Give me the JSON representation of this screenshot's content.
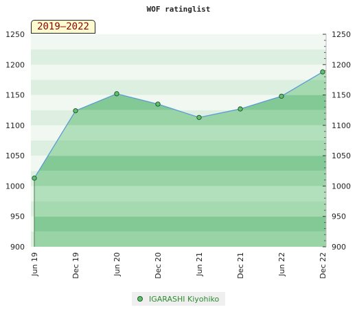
{
  "chart_data": {
    "type": "area",
    "title": "WOF ratinglist",
    "period_badge": "2019–2022",
    "xlabel": "",
    "ylabel": "",
    "categories": [
      "Jun 19",
      "Dec 19",
      "Jun 20",
      "Dec 20",
      "Jun 21",
      "Dec 21",
      "Jun 22",
      "Dec 22"
    ],
    "ylim": [
      900,
      1250
    ],
    "yticks": [
      900,
      950,
      1000,
      1050,
      1100,
      1150,
      1200,
      1250
    ],
    "series": [
      {
        "name": "IGARASHI Kiyohiko",
        "values": [
          1013,
          1124,
          1152,
          1135,
          1113,
          1127,
          1148,
          1188
        ]
      }
    ],
    "legend_position": "bottom",
    "colors": {
      "area": "#8fcf9d",
      "line": "#5b9bd5",
      "point": "#5fbf70",
      "legend_text": "#2e8b2e",
      "badge_text": "#8b0000"
    }
  }
}
